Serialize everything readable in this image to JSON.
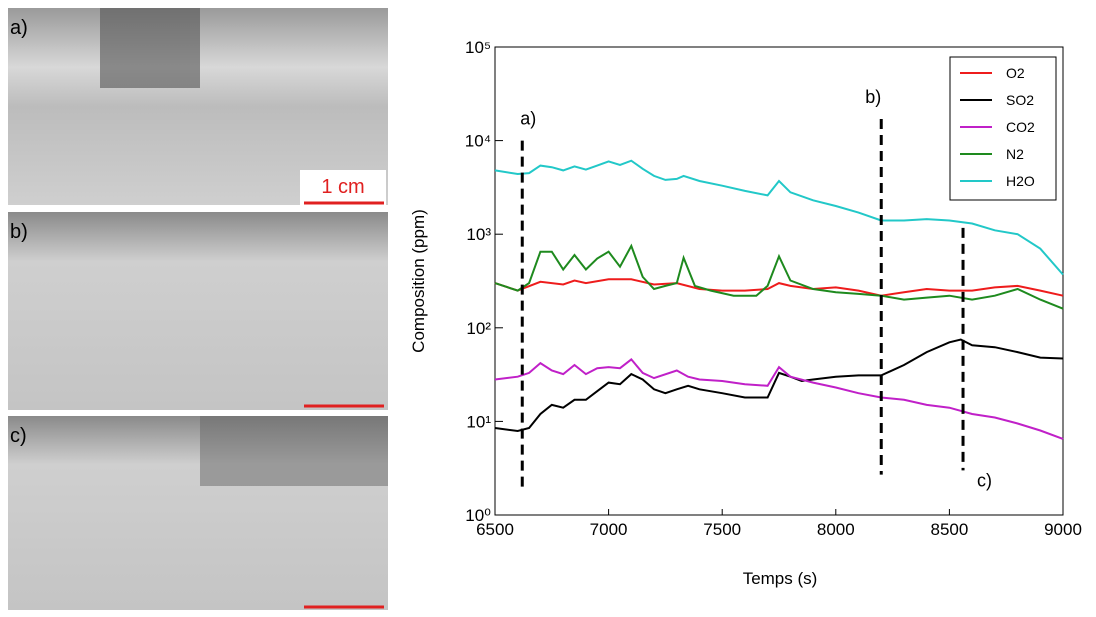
{
  "figure": {
    "panels": [
      {
        "label": "a)"
      },
      {
        "label": "b)"
      },
      {
        "label": "c)"
      }
    ],
    "scale_label": "1 cm"
  },
  "chart_data": {
    "type": "line",
    "xlabel": "Temps (s)",
    "ylabel": "Composition (ppm)",
    "xlim": [
      6500,
      9000
    ],
    "xticks": [
      6500,
      7000,
      7500,
      8000,
      8500,
      9000
    ],
    "ylim": [
      1,
      100000
    ],
    "log_y": true,
    "yticks": [
      {
        "value": 1,
        "label": "10⁰"
      },
      {
        "value": 10,
        "label": "10¹"
      },
      {
        "value": 100,
        "label": "10²"
      },
      {
        "value": 1000,
        "label": "10³"
      },
      {
        "value": 10000,
        "label": "10⁴"
      },
      {
        "value": 100000,
        "label": "10⁵"
      }
    ],
    "legend": "upper right",
    "series": [
      {
        "name": "O2",
        "color": "#ee1c1c",
        "x": [
          6500,
          6600,
          6700,
          6800,
          6850,
          6900,
          7000,
          7100,
          7200,
          7300,
          7400,
          7500,
          7600,
          7700,
          7750,
          7800,
          7900,
          8000,
          8100,
          8200,
          8300,
          8400,
          8500,
          8600,
          8700,
          8800,
          8900,
          9000
        ],
        "values": [
          300,
          250,
          310,
          290,
          320,
          300,
          330,
          330,
          290,
          300,
          260,
          250,
          250,
          260,
          300,
          280,
          260,
          270,
          250,
          220,
          240,
          260,
          250,
          250,
          270,
          280,
          250,
          220
        ]
      },
      {
        "name": "SO2",
        "color": "#000000",
        "x": [
          6500,
          6600,
          6650,
          6700,
          6750,
          6800,
          6850,
          6900,
          6950,
          7000,
          7050,
          7100,
          7150,
          7200,
          7250,
          7300,
          7350,
          7400,
          7500,
          7600,
          7700,
          7750,
          7800,
          7850,
          7900,
          8000,
          8100,
          8200,
          8300,
          8400,
          8500,
          8550,
          8600,
          8700,
          8800,
          8900,
          9000
        ],
        "values": [
          8.5,
          7.9,
          8.5,
          12,
          15,
          14,
          17,
          17,
          21,
          26,
          25,
          32,
          28,
          22,
          20,
          22,
          24,
          22,
          20,
          18,
          18,
          33,
          30,
          27,
          28,
          30,
          31,
          31,
          40,
          55,
          70,
          75,
          65,
          62,
          55,
          48,
          47
        ]
      },
      {
        "name": "CO2",
        "color": "#c020c8",
        "x": [
          6500,
          6600,
          6650,
          6700,
          6750,
          6800,
          6850,
          6900,
          6950,
          7000,
          7050,
          7100,
          7150,
          7200,
          7300,
          7350,
          7400,
          7500,
          7600,
          7700,
          7750,
          7800,
          7900,
          8000,
          8100,
          8200,
          8300,
          8400,
          8500,
          8600,
          8700,
          8800,
          8900,
          9000
        ],
        "values": [
          28,
          30,
          33,
          42,
          35,
          32,
          40,
          32,
          37,
          38,
          37,
          46,
          33,
          29,
          35,
          30,
          28,
          27,
          25,
          24,
          38,
          30,
          26,
          23,
          20,
          18,
          17,
          15,
          14,
          12,
          11,
          9.5,
          8,
          6.5
        ]
      },
      {
        "name": "N2",
        "color": "#1e8a1e",
        "x": [
          6500,
          6600,
          6650,
          6700,
          6750,
          6800,
          6850,
          6900,
          6950,
          7000,
          7050,
          7100,
          7150,
          7200,
          7250,
          7300,
          7330,
          7380,
          7450,
          7550,
          7650,
          7700,
          7750,
          7800,
          7900,
          8000,
          8100,
          8200,
          8300,
          8400,
          8500,
          8600,
          8700,
          8800,
          8900,
          9000
        ],
        "values": [
          300,
          250,
          300,
          650,
          650,
          420,
          600,
          420,
          550,
          650,
          450,
          750,
          350,
          260,
          280,
          300,
          560,
          280,
          250,
          220,
          220,
          280,
          580,
          320,
          260,
          240,
          230,
          220,
          200,
          210,
          220,
          200,
          220,
          260,
          200,
          160
        ]
      },
      {
        "name": "H2O",
        "color": "#22c8c8",
        "x": [
          6500,
          6600,
          6650,
          6700,
          6750,
          6800,
          6850,
          6900,
          6950,
          7000,
          7050,
          7100,
          7150,
          7200,
          7250,
          7300,
          7330,
          7400,
          7500,
          7600,
          7700,
          7750,
          7800,
          7900,
          8000,
          8100,
          8200,
          8300,
          8400,
          8500,
          8600,
          8700,
          8800,
          8900,
          9000
        ],
        "values": [
          4800,
          4400,
          4500,
          5400,
          5200,
          4800,
          5300,
          4900,
          5400,
          6000,
          5500,
          6100,
          5000,
          4200,
          3800,
          3900,
          4200,
          3700,
          3300,
          2900,
          2600,
          3700,
          2800,
          2300,
          2000,
          1700,
          1400,
          1400,
          1450,
          1400,
          1300,
          1100,
          1000,
          700,
          370
        ]
      }
    ],
    "annotations": [
      {
        "label": "a)",
        "x": 6620,
        "y_top": 10000,
        "y_bottom": 1.9
      },
      {
        "label": "b)",
        "x": 8200,
        "y_top": 17000,
        "y_bottom": 2.7
      },
      {
        "label": "c)",
        "x": 8560,
        "y_top": 1170,
        "y_bottom": 3
      }
    ]
  }
}
